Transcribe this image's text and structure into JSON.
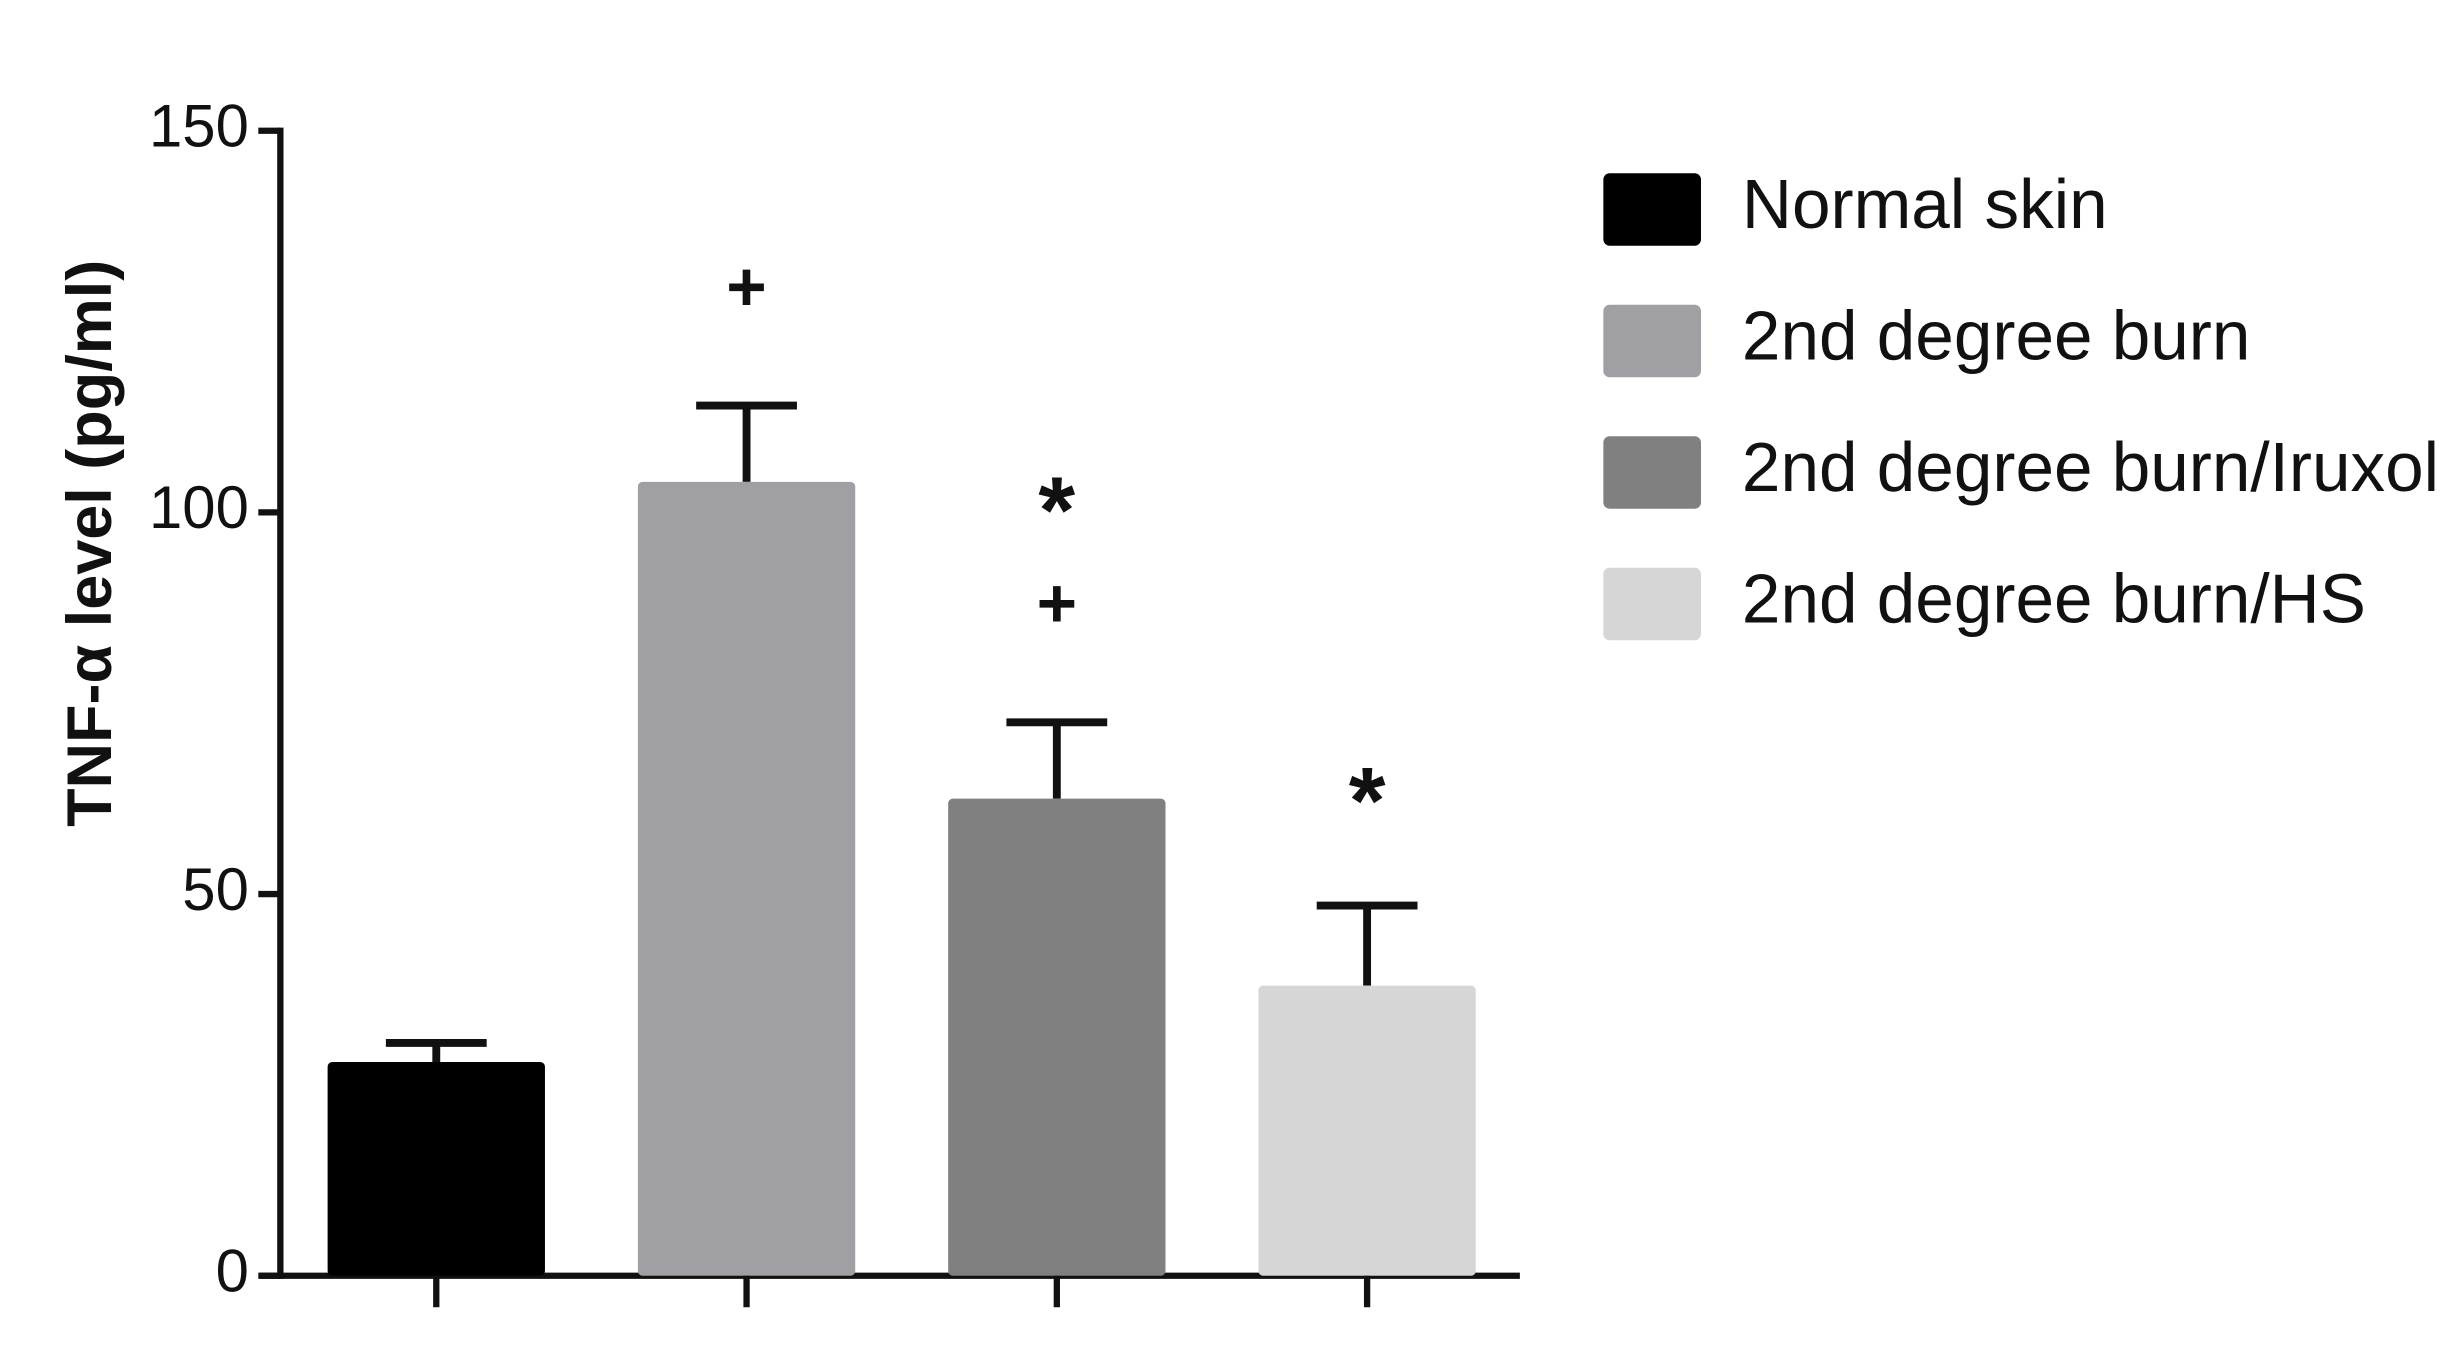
{
  "chart_data": {
    "type": "bar",
    "y_label": "TNF-α level (pg/ml)",
    "categories": [
      "Normal skin",
      "2nd degree burn",
      "2nd degree burn/Iruxol",
      "2nd degree burn/HS"
    ],
    "values": [
      28,
      104,
      62.5,
      38
    ],
    "errors": [
      2.5,
      10,
      10,
      10.5
    ],
    "colors": [
      "#000000",
      "#a0a0a4",
      "#808080",
      "#d6d6d6"
    ],
    "annotations": [
      null,
      [
        "+"
      ],
      [
        "*",
        "+"
      ],
      [
        "*"
      ]
    ],
    "ylim": [
      0,
      150
    ],
    "yticks": [
      0,
      50,
      100,
      150
    ],
    "legend": "right"
  }
}
